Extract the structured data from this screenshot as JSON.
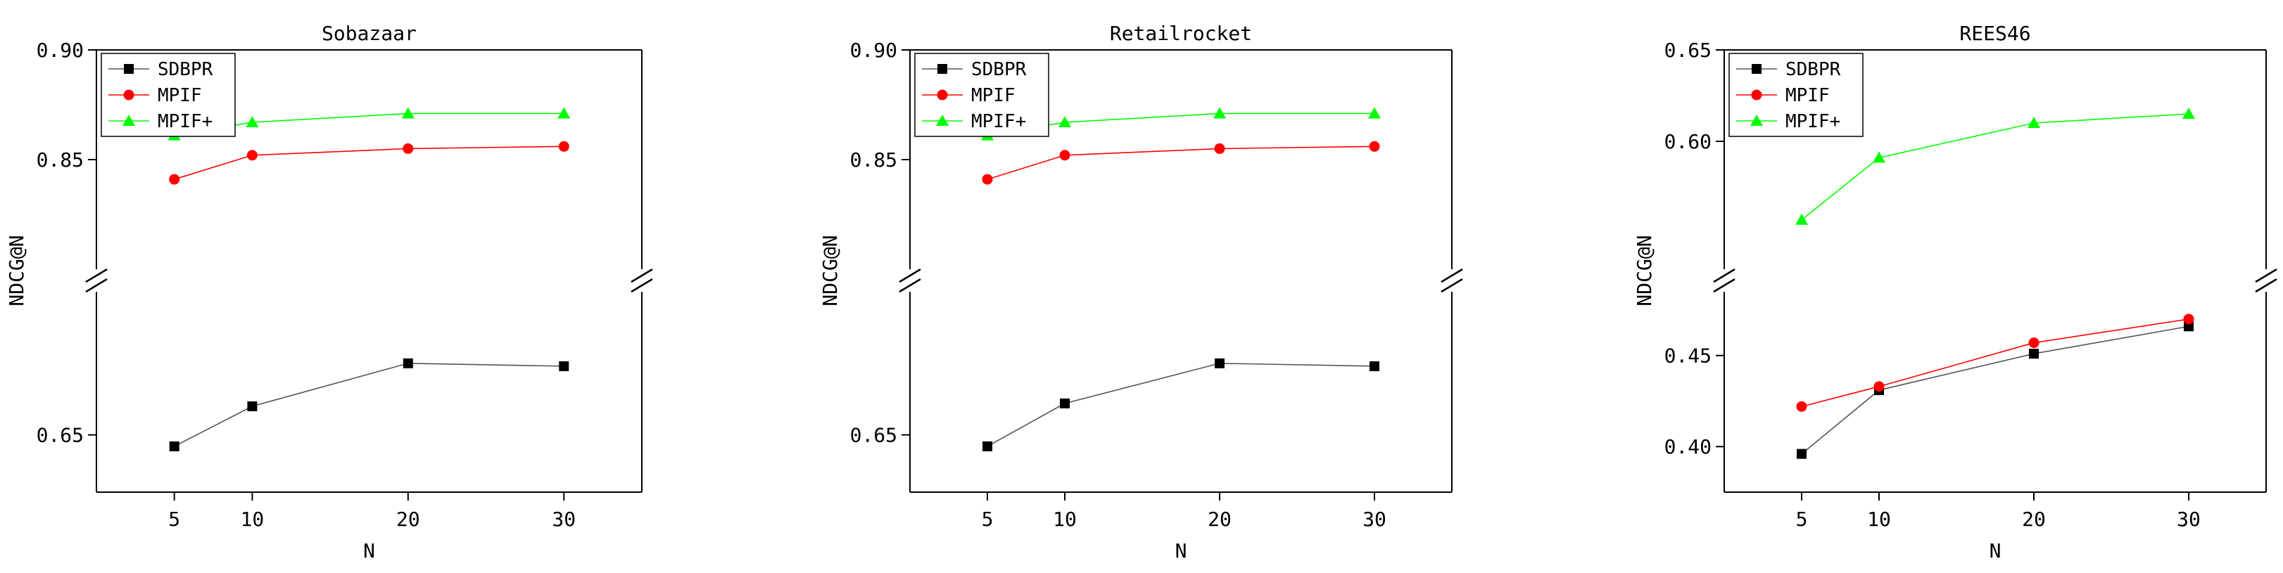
{
  "chart_data": [
    {
      "type": "line",
      "title": "Sobazaar",
      "xlabel": "N",
      "ylabel": "NDCG@N",
      "x": [
        5,
        10,
        20,
        30
      ],
      "xticks": [
        "5",
        "10",
        "20",
        "30"
      ],
      "xlim": [
        0,
        35
      ],
      "axis_break": true,
      "upper_range": [
        0.8,
        0.9
      ],
      "upper_ticks": [
        "0.85",
        "0.90"
      ],
      "lower_range": [
        0.63,
        0.7
      ],
      "lower_ticks": [
        "0.65"
      ],
      "legend_position": "top-left",
      "series": [
        {
          "name": "SDBPR",
          "color": "#000000",
          "marker": "square",
          "values": [
            0.646,
            0.66,
            0.675,
            0.674
          ]
        },
        {
          "name": "MPIF",
          "color": "#ff0000",
          "marker": "circle",
          "values": [
            0.841,
            0.852,
            0.855,
            0.856
          ]
        },
        {
          "name": "MPIF+",
          "color": "#00ff00",
          "marker": "triangle",
          "values": [
            0.861,
            0.867,
            0.871,
            0.871
          ]
        }
      ]
    },
    {
      "type": "line",
      "title": "Retailrocket",
      "xlabel": "N",
      "ylabel": "NDCG@N",
      "x": [
        5,
        10,
        20,
        30
      ],
      "xticks": [
        "5",
        "10",
        "20",
        "30"
      ],
      "xlim": [
        0,
        35
      ],
      "axis_break": true,
      "upper_range": [
        0.8,
        0.9
      ],
      "upper_ticks": [
        "0.85",
        "0.90"
      ],
      "lower_range": [
        0.63,
        0.7
      ],
      "lower_ticks": [
        "0.65"
      ],
      "legend_position": "top-left",
      "series": [
        {
          "name": "SDBPR",
          "color": "#000000",
          "marker": "square",
          "values": [
            0.646,
            0.661,
            0.675,
            0.674
          ]
        },
        {
          "name": "MPIF",
          "color": "#ff0000",
          "marker": "circle",
          "values": [
            0.841,
            0.852,
            0.855,
            0.856
          ]
        },
        {
          "name": "MPIF+",
          "color": "#00ff00",
          "marker": "triangle",
          "values": [
            0.861,
            0.867,
            0.871,
            0.871
          ]
        }
      ]
    },
    {
      "type": "line",
      "title": "REES46",
      "xlabel": "N",
      "ylabel": "NDCG@N",
      "x": [
        5,
        10,
        20,
        30
      ],
      "xticks": [
        "5",
        "10",
        "20",
        "30"
      ],
      "xlim": [
        0,
        35
      ],
      "axis_break": true,
      "upper_range": [
        0.53,
        0.65
      ],
      "upper_ticks": [
        "0.60",
        "0.65"
      ],
      "lower_range": [
        0.375,
        0.485
      ],
      "lower_ticks": [
        "0.40",
        "0.45"
      ],
      "legend_position": "top-left",
      "series": [
        {
          "name": "SDBPR",
          "color": "#000000",
          "marker": "square",
          "values": [
            0.396,
            0.431,
            0.451,
            0.466
          ]
        },
        {
          "name": "MPIF",
          "color": "#ff0000",
          "marker": "circle",
          "values": [
            0.422,
            0.433,
            0.457,
            0.47
          ]
        },
        {
          "name": "MPIF+",
          "color": "#00ff00",
          "marker": "triangle",
          "values": [
            0.557,
            0.591,
            0.61,
            0.615
          ]
        }
      ]
    }
  ]
}
